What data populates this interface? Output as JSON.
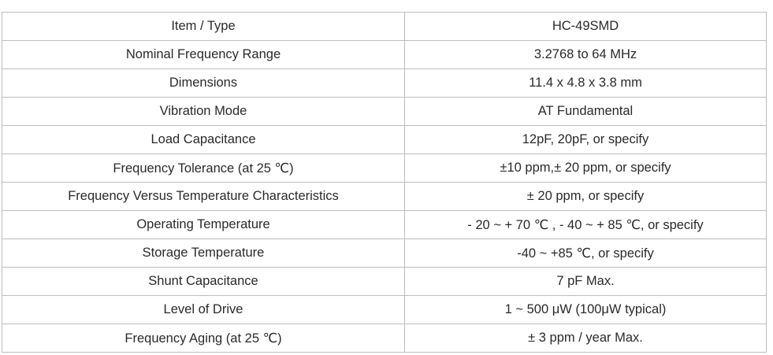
{
  "spec_table": {
    "rows": [
      {
        "label": "Item / Type",
        "value": "HC-49SMD"
      },
      {
        "label": "Nominal Frequency Range",
        "value": "3.2768 to 64 MHz"
      },
      {
        "label": "Dimensions",
        "value": "11.4 x 4.8 x 3.8 mm"
      },
      {
        "label": "Vibration Mode",
        "value": "AT Fundamental"
      },
      {
        "label": "Load Capacitance",
        "value": "12pF, 20pF, or specify"
      },
      {
        "label": "Frequency Tolerance (at 25 ℃)",
        "value": "±10 ppm,± 20 ppm, or specify"
      },
      {
        "label": "Frequency Versus Temperature Characteristics",
        "value": "± 20 ppm, or specify"
      },
      {
        "label": "Operating Temperature",
        "value": "- 20 ~ + 70 ℃ , - 40 ~ + 85 ℃, or specify"
      },
      {
        "label": "Storage Temperature",
        "value": "-40 ~ +85 ℃, or specify"
      },
      {
        "label": "Shunt Capacitance",
        "value": "7 pF Max."
      },
      {
        "label": "Level of Drive",
        "value": "1 ~ 500 μW (100μW typical)"
      },
      {
        "label": "Frequency Aging (at 25 ℃)",
        "value": "± 3 ppm / year Max."
      }
    ]
  }
}
